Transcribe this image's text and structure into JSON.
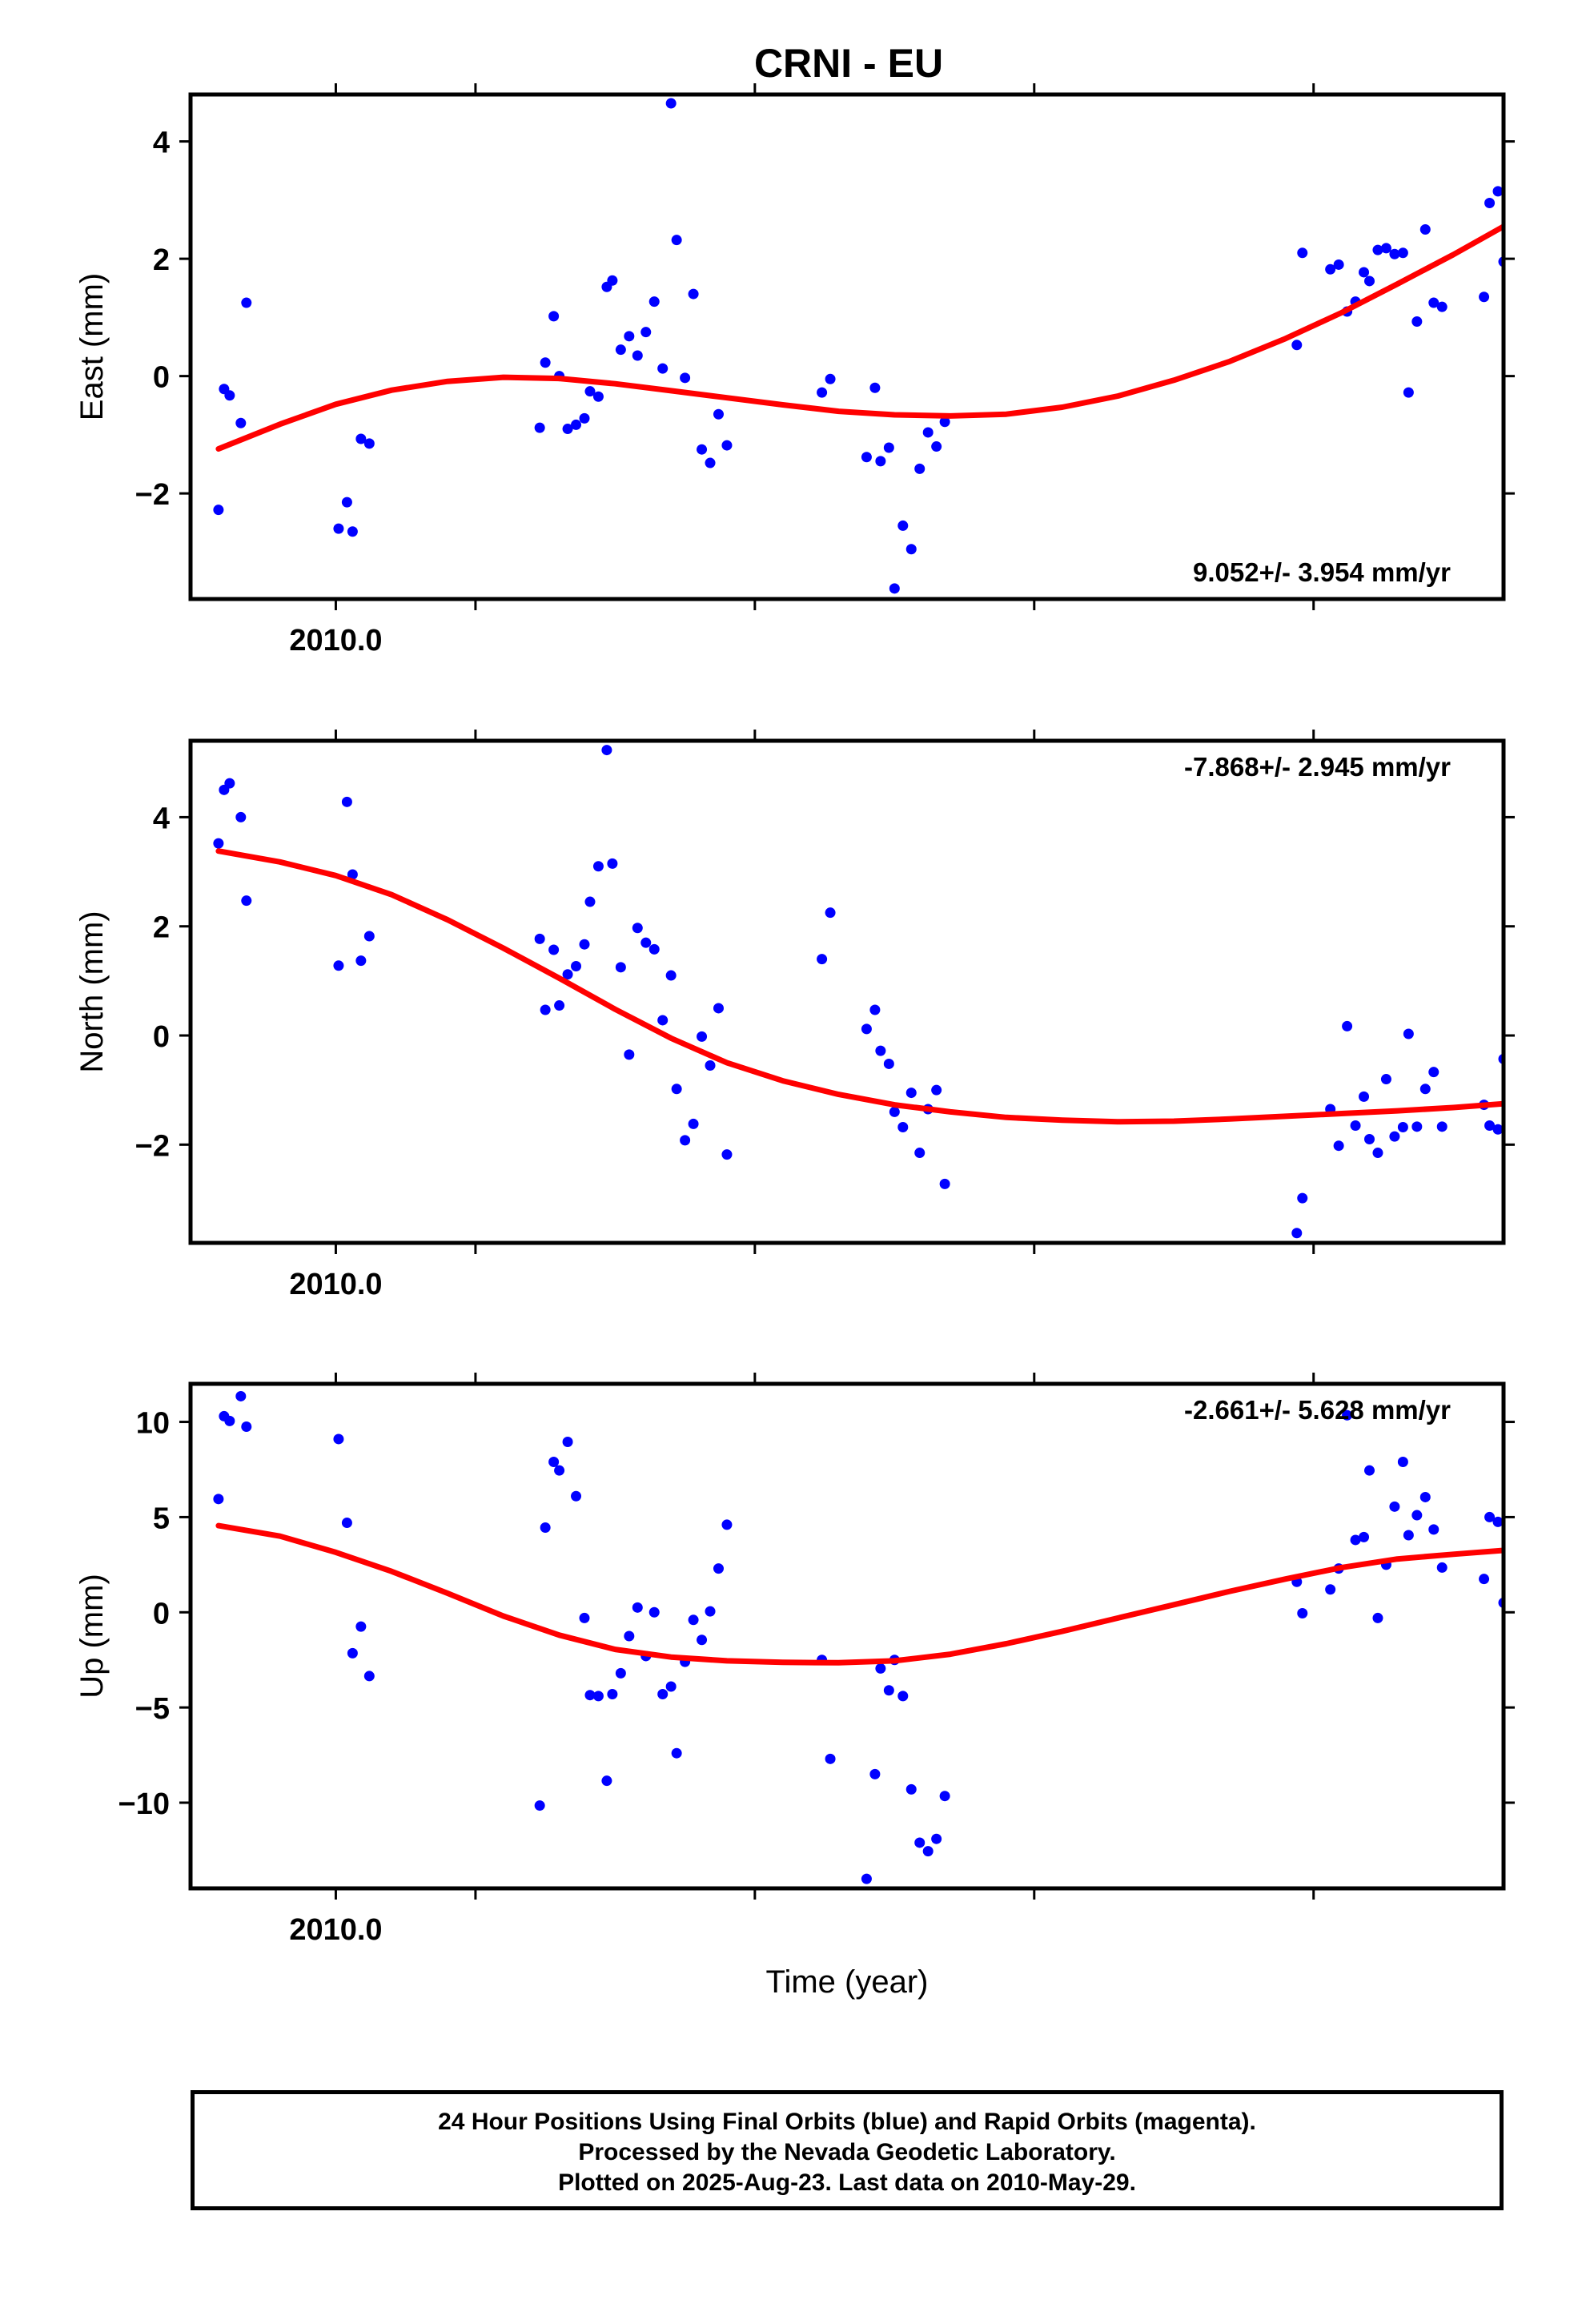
{
  "title": "CRNI - EU",
  "xlabel": "Time (year)",
  "caption": {
    "line1": "24 Hour Positions Using Final Orbits (blue) and Rapid Orbits (magenta).",
    "line2": "Processed by the Nevada Geodetic Laboratory.",
    "line3": "Plotted on 2025-Aug-23. Last data on 2010-May-29."
  },
  "colors": {
    "points": "#0000ff",
    "fit": "#ff0000",
    "axes": "#000000"
  },
  "chart_data": [
    {
      "type": "scatter",
      "ylabel": "East (mm)",
      "rate_label": "9.052+/- 3.954 mm/yr",
      "xlim": [
        2009.948,
        2010.418
      ],
      "ylim": [
        -3.8,
        4.8
      ],
      "x_ticks": [
        2010.0
      ],
      "x_tick_labels": [
        "2010.0"
      ],
      "y_ticks": [
        -2,
        0,
        2,
        4
      ],
      "y_tick_labels": [
        "−2",
        "0",
        "2",
        "4"
      ],
      "points": [
        [
          2009.958,
          -2.28
        ],
        [
          2009.96,
          -0.22
        ],
        [
          2009.962,
          -0.33
        ],
        [
          2009.966,
          -0.8
        ],
        [
          2009.968,
          1.25
        ],
        [
          2010.001,
          -2.6
        ],
        [
          2010.004,
          -2.15
        ],
        [
          2010.006,
          -2.65
        ],
        [
          2010.009,
          -1.07
        ],
        [
          2010.012,
          -1.15
        ],
        [
          2010.073,
          -0.88
        ],
        [
          2010.075,
          0.23
        ],
        [
          2010.078,
          1.02
        ],
        [
          2010.08,
          0.0
        ],
        [
          2010.083,
          -0.9
        ],
        [
          2010.086,
          -0.83
        ],
        [
          2010.089,
          -0.72
        ],
        [
          2010.091,
          -0.26
        ],
        [
          2010.094,
          -0.35
        ],
        [
          2010.097,
          1.52
        ],
        [
          2010.099,
          1.63
        ],
        [
          2010.102,
          0.45
        ],
        [
          2010.105,
          0.68
        ],
        [
          2010.108,
          0.35
        ],
        [
          2010.111,
          0.75
        ],
        [
          2010.114,
          1.27
        ],
        [
          2010.117,
          0.13
        ],
        [
          2010.12,
          4.65
        ],
        [
          2010.122,
          2.32
        ],
        [
          2010.125,
          -0.03
        ],
        [
          2010.128,
          1.4
        ],
        [
          2010.131,
          -1.25
        ],
        [
          2010.134,
          -1.48
        ],
        [
          2010.137,
          -0.65
        ],
        [
          2010.14,
          -1.18
        ],
        [
          2010.174,
          -0.28
        ],
        [
          2010.177,
          -0.05
        ],
        [
          2010.19,
          -1.38
        ],
        [
          2010.193,
          -0.2
        ],
        [
          2010.195,
          -1.45
        ],
        [
          2010.198,
          -1.22
        ],
        [
          2010.2,
          -3.62
        ],
        [
          2010.203,
          -2.55
        ],
        [
          2010.206,
          -2.95
        ],
        [
          2010.209,
          -1.58
        ],
        [
          2010.212,
          -0.96
        ],
        [
          2010.215,
          -1.2
        ],
        [
          2010.218,
          -0.78
        ],
        [
          2010.344,
          0.53
        ],
        [
          2010.346,
          2.1
        ],
        [
          2010.356,
          1.82
        ],
        [
          2010.359,
          1.9
        ],
        [
          2010.362,
          1.1
        ],
        [
          2010.365,
          1.27
        ],
        [
          2010.368,
          1.77
        ],
        [
          2010.37,
          1.62
        ],
        [
          2010.373,
          2.15
        ],
        [
          2010.376,
          2.18
        ],
        [
          2010.379,
          2.08
        ],
        [
          2010.382,
          2.1
        ],
        [
          2010.384,
          -0.28
        ],
        [
          2010.387,
          0.93
        ],
        [
          2010.39,
          2.5
        ],
        [
          2010.393,
          1.25
        ],
        [
          2010.396,
          1.18
        ],
        [
          2010.411,
          1.35
        ],
        [
          2010.413,
          2.95
        ],
        [
          2010.416,
          3.15
        ],
        [
          2010.418,
          1.95
        ]
      ],
      "fit": [
        [
          2009.958,
          -1.24
        ],
        [
          2009.98,
          -0.82
        ],
        [
          2010.0,
          -0.48
        ],
        [
          2010.02,
          -0.24
        ],
        [
          2010.04,
          -0.09
        ],
        [
          2010.06,
          -0.02
        ],
        [
          2010.08,
          -0.04
        ],
        [
          2010.1,
          -0.13
        ],
        [
          2010.12,
          -0.25
        ],
        [
          2010.14,
          -0.37
        ],
        [
          2010.16,
          -0.49
        ],
        [
          2010.18,
          -0.6
        ],
        [
          2010.2,
          -0.66
        ],
        [
          2010.22,
          -0.68
        ],
        [
          2010.24,
          -0.65
        ],
        [
          2010.26,
          -0.53
        ],
        [
          2010.28,
          -0.34
        ],
        [
          2010.3,
          -0.07
        ],
        [
          2010.32,
          0.25
        ],
        [
          2010.34,
          0.64
        ],
        [
          2010.36,
          1.08
        ],
        [
          2010.38,
          1.57
        ],
        [
          2010.4,
          2.07
        ],
        [
          2010.418,
          2.55
        ]
      ]
    },
    {
      "type": "scatter",
      "ylabel": "North (mm)",
      "rate_label": "-7.868+/- 2.945 mm/yr",
      "xlim": [
        2009.948,
        2010.418
      ],
      "ylim": [
        -3.8,
        5.4
      ],
      "x_ticks": [
        2010.0
      ],
      "x_tick_labels": [
        "2010.0"
      ],
      "y_ticks": [
        -2,
        0,
        2,
        4
      ],
      "y_tick_labels": [
        "−2",
        "0",
        "2",
        "4"
      ],
      "points": [
        [
          2009.958,
          3.52
        ],
        [
          2009.96,
          4.5
        ],
        [
          2009.962,
          4.62
        ],
        [
          2009.966,
          4.0
        ],
        [
          2009.968,
          2.47
        ],
        [
          2010.001,
          1.28
        ],
        [
          2010.004,
          4.28
        ],
        [
          2010.006,
          2.95
        ],
        [
          2010.009,
          1.37
        ],
        [
          2010.012,
          1.82
        ],
        [
          2010.073,
          1.77
        ],
        [
          2010.075,
          0.47
        ],
        [
          2010.078,
          1.57
        ],
        [
          2010.08,
          0.55
        ],
        [
          2010.083,
          1.12
        ],
        [
          2010.086,
          1.27
        ],
        [
          2010.089,
          1.67
        ],
        [
          2010.091,
          2.45
        ],
        [
          2010.094,
          3.1
        ],
        [
          2010.097,
          5.23
        ],
        [
          2010.099,
          3.15
        ],
        [
          2010.102,
          1.25
        ],
        [
          2010.105,
          -0.35
        ],
        [
          2010.108,
          1.97
        ],
        [
          2010.111,
          1.7
        ],
        [
          2010.114,
          1.58
        ],
        [
          2010.117,
          0.28
        ],
        [
          2010.12,
          1.1
        ],
        [
          2010.122,
          -0.98
        ],
        [
          2010.125,
          -1.92
        ],
        [
          2010.128,
          -1.62
        ],
        [
          2010.131,
          -0.02
        ],
        [
          2010.134,
          -0.55
        ],
        [
          2010.137,
          0.5
        ],
        [
          2010.14,
          -2.18
        ],
        [
          2010.174,
          1.4
        ],
        [
          2010.177,
          2.25
        ],
        [
          2010.19,
          0.12
        ],
        [
          2010.193,
          0.47
        ],
        [
          2010.195,
          -0.28
        ],
        [
          2010.198,
          -0.52
        ],
        [
          2010.2,
          -1.4
        ],
        [
          2010.203,
          -1.68
        ],
        [
          2010.206,
          -1.05
        ],
        [
          2010.209,
          -2.15
        ],
        [
          2010.212,
          -1.35
        ],
        [
          2010.215,
          -1.0
        ],
        [
          2010.218,
          -2.72
        ],
        [
          2010.344,
          -3.62
        ],
        [
          2010.346,
          -2.98
        ],
        [
          2010.356,
          -1.35
        ],
        [
          2010.359,
          -2.02
        ],
        [
          2010.362,
          0.17
        ],
        [
          2010.365,
          -1.65
        ],
        [
          2010.368,
          -1.12
        ],
        [
          2010.37,
          -1.9
        ],
        [
          2010.373,
          -2.15
        ],
        [
          2010.376,
          -0.8
        ],
        [
          2010.379,
          -1.85
        ],
        [
          2010.382,
          -1.68
        ],
        [
          2010.384,
          0.03
        ],
        [
          2010.387,
          -1.67
        ],
        [
          2010.39,
          -0.98
        ],
        [
          2010.393,
          -0.67
        ],
        [
          2010.396,
          -1.67
        ],
        [
          2010.411,
          -1.27
        ],
        [
          2010.413,
          -1.65
        ],
        [
          2010.416,
          -1.72
        ],
        [
          2010.418,
          -0.43
        ]
      ],
      "fit": [
        [
          2009.958,
          3.38
        ],
        [
          2009.98,
          3.18
        ],
        [
          2010.0,
          2.93
        ],
        [
          2010.02,
          2.58
        ],
        [
          2010.04,
          2.12
        ],
        [
          2010.06,
          1.6
        ],
        [
          2010.08,
          1.05
        ],
        [
          2010.1,
          0.48
        ],
        [
          2010.12,
          -0.05
        ],
        [
          2010.14,
          -0.5
        ],
        [
          2010.16,
          -0.83
        ],
        [
          2010.18,
          -1.08
        ],
        [
          2010.2,
          -1.27
        ],
        [
          2010.22,
          -1.4
        ],
        [
          2010.24,
          -1.5
        ],
        [
          2010.26,
          -1.55
        ],
        [
          2010.28,
          -1.58
        ],
        [
          2010.3,
          -1.57
        ],
        [
          2010.32,
          -1.53
        ],
        [
          2010.34,
          -1.48
        ],
        [
          2010.36,
          -1.43
        ],
        [
          2010.38,
          -1.38
        ],
        [
          2010.4,
          -1.32
        ],
        [
          2010.418,
          -1.25
        ]
      ]
    },
    {
      "type": "scatter",
      "ylabel": "Up (mm)",
      "rate_label": "-2.661+/- 5.628 mm/yr",
      "xlim": [
        2009.948,
        2010.418
      ],
      "ylim": [
        -14.5,
        12.0
      ],
      "x_ticks": [
        2010.0
      ],
      "x_tick_labels": [
        "2010.0"
      ],
      "y_ticks": [
        -10,
        -5,
        0,
        5,
        10
      ],
      "y_tick_labels": [
        "−10",
        "−5",
        "0",
        "5",
        "10"
      ],
      "points": [
        [
          2009.958,
          5.95
        ],
        [
          2009.96,
          10.3
        ],
        [
          2009.962,
          10.05
        ],
        [
          2009.966,
          11.35
        ],
        [
          2009.968,
          9.75
        ],
        [
          2010.001,
          9.1
        ],
        [
          2010.004,
          4.7
        ],
        [
          2010.006,
          -2.15
        ],
        [
          2010.009,
          -0.75
        ],
        [
          2010.012,
          -3.35
        ],
        [
          2010.073,
          -10.15
        ],
        [
          2010.075,
          4.45
        ],
        [
          2010.078,
          7.9
        ],
        [
          2010.08,
          7.45
        ],
        [
          2010.083,
          8.95
        ],
        [
          2010.086,
          6.1
        ],
        [
          2010.089,
          -0.3
        ],
        [
          2010.091,
          -4.35
        ],
        [
          2010.094,
          -4.4
        ],
        [
          2010.097,
          -8.85
        ],
        [
          2010.099,
          -4.3
        ],
        [
          2010.102,
          -3.2
        ],
        [
          2010.105,
          -1.25
        ],
        [
          2010.108,
          0.25
        ],
        [
          2010.111,
          -2.3
        ],
        [
          2010.114,
          0.0
        ],
        [
          2010.117,
          -4.3
        ],
        [
          2010.12,
          -3.9
        ],
        [
          2010.122,
          -7.4
        ],
        [
          2010.125,
          -2.6
        ],
        [
          2010.128,
          -0.4
        ],
        [
          2010.131,
          -1.45
        ],
        [
          2010.134,
          0.05
        ],
        [
          2010.137,
          2.3
        ],
        [
          2010.14,
          4.6
        ],
        [
          2010.174,
          -2.5
        ],
        [
          2010.177,
          -7.7
        ],
        [
          2010.19,
          -14.0
        ],
        [
          2010.193,
          -8.5
        ],
        [
          2010.195,
          -2.95
        ],
        [
          2010.198,
          -4.1
        ],
        [
          2010.2,
          -2.5
        ],
        [
          2010.203,
          -4.4
        ],
        [
          2010.206,
          -9.3
        ],
        [
          2010.209,
          -12.1
        ],
        [
          2010.212,
          -12.55
        ],
        [
          2010.215,
          -11.9
        ],
        [
          2010.218,
          -9.65
        ],
        [
          2010.344,
          1.6
        ],
        [
          2010.346,
          -0.05
        ],
        [
          2010.356,
          1.2
        ],
        [
          2010.359,
          2.3
        ],
        [
          2010.362,
          10.35
        ],
        [
          2010.365,
          3.8
        ],
        [
          2010.368,
          3.95
        ],
        [
          2010.37,
          7.45
        ],
        [
          2010.373,
          -0.3
        ],
        [
          2010.376,
          2.5
        ],
        [
          2010.379,
          5.55
        ],
        [
          2010.382,
          7.9
        ],
        [
          2010.384,
          4.05
        ],
        [
          2010.387,
          5.1
        ],
        [
          2010.39,
          6.05
        ],
        [
          2010.393,
          4.35
        ],
        [
          2010.396,
          2.35
        ],
        [
          2010.411,
          1.75
        ],
        [
          2010.413,
          5.0
        ],
        [
          2010.416,
          4.75
        ],
        [
          2010.418,
          0.5
        ]
      ],
      "fit": [
        [
          2009.958,
          4.55
        ],
        [
          2009.98,
          4.0
        ],
        [
          2010.0,
          3.15
        ],
        [
          2010.02,
          2.15
        ],
        [
          2010.04,
          1.0
        ],
        [
          2010.06,
          -0.2
        ],
        [
          2010.08,
          -1.2
        ],
        [
          2010.1,
          -1.95
        ],
        [
          2010.12,
          -2.35
        ],
        [
          2010.14,
          -2.55
        ],
        [
          2010.16,
          -2.63
        ],
        [
          2010.18,
          -2.65
        ],
        [
          2010.2,
          -2.55
        ],
        [
          2010.22,
          -2.2
        ],
        [
          2010.24,
          -1.65
        ],
        [
          2010.26,
          -1.0
        ],
        [
          2010.28,
          -0.3
        ],
        [
          2010.3,
          0.4
        ],
        [
          2010.32,
          1.1
        ],
        [
          2010.34,
          1.75
        ],
        [
          2010.36,
          2.35
        ],
        [
          2010.38,
          2.8
        ],
        [
          2010.4,
          3.05
        ],
        [
          2010.418,
          3.25
        ]
      ]
    }
  ]
}
